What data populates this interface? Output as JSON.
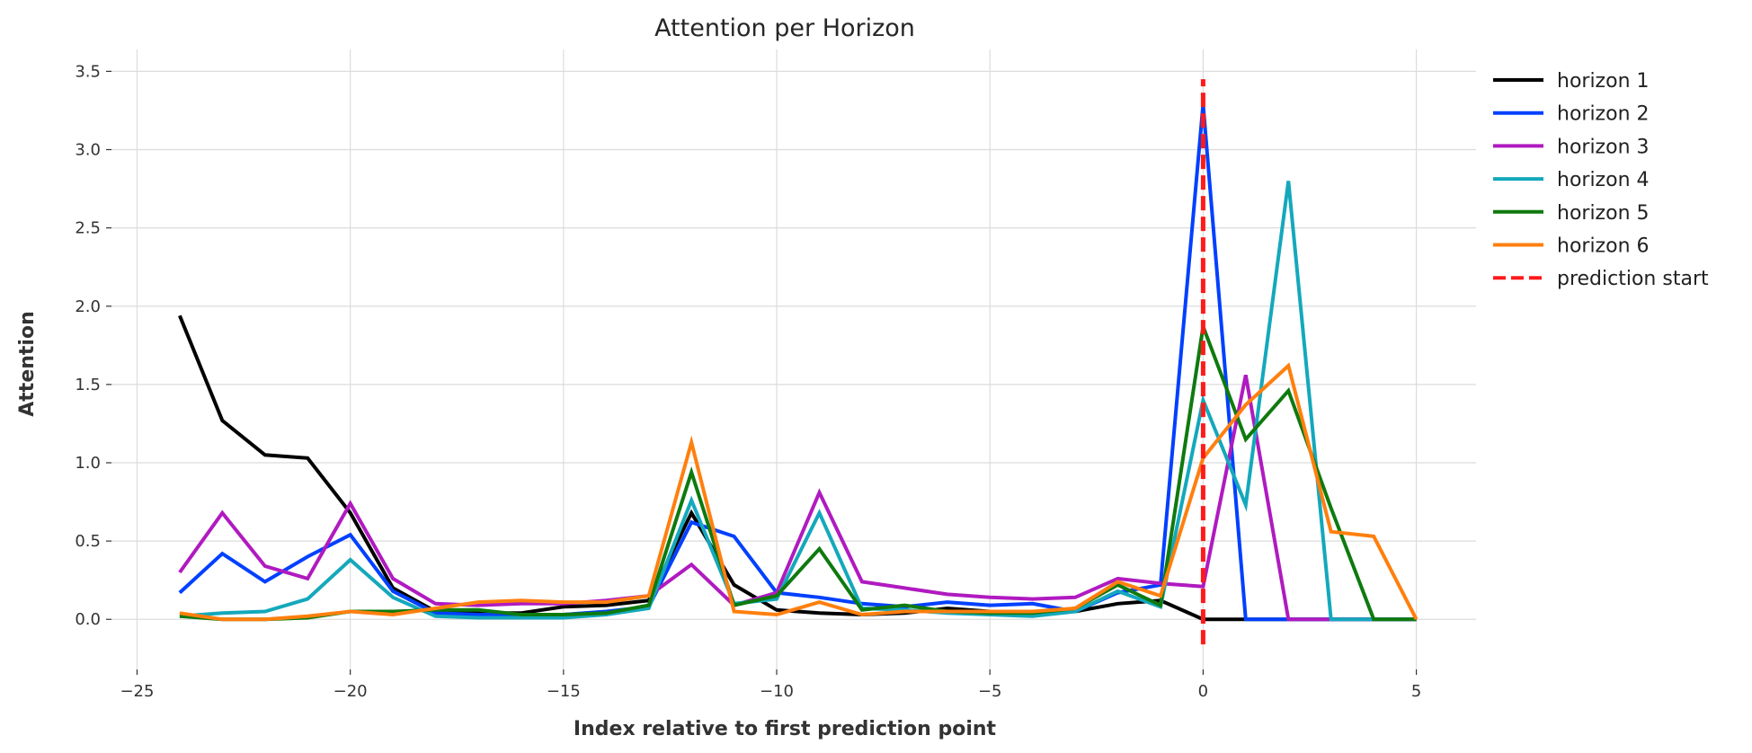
{
  "chart_data": {
    "type": "line",
    "title": "Attention per Horizon",
    "xlabel": "Index relative to first prediction point",
    "ylabel": "Attention",
    "xlim": [
      -25.6,
      6.4
    ],
    "ylim": [
      -0.32,
      3.64
    ],
    "xticks": [
      -25,
      -20,
      -15,
      -10,
      -5,
      0,
      5
    ],
    "xtick_labels": [
      "−25",
      "−20",
      "−15",
      "−10",
      "−5",
      "0",
      "5"
    ],
    "yticks": [
      0.0,
      0.5,
      1.0,
      1.5,
      2.0,
      2.5,
      3.0,
      3.5
    ],
    "ytick_labels": [
      "0.0",
      "0.5",
      "1.0",
      "1.5",
      "2.0",
      "2.5",
      "3.0",
      "3.5"
    ],
    "grid": true,
    "legend_position": "outside-top-right",
    "x": [
      -24,
      -23,
      -22,
      -21,
      -20,
      -19,
      -18,
      -17,
      -16,
      -15,
      -14,
      -13,
      -12,
      -11,
      -10,
      -9,
      -8,
      -7,
      -6,
      -5,
      -4,
      -3,
      -2,
      -1,
      0,
      1,
      2,
      3,
      4,
      5
    ],
    "series": [
      {
        "name": "horizon 1",
        "color": "#000000",
        "values": [
          1.94,
          1.27,
          1.05,
          1.03,
          0.68,
          0.2,
          0.05,
          0.04,
          0.04,
          0.08,
          0.09,
          0.12,
          0.68,
          0.22,
          0.06,
          0.04,
          0.03,
          0.04,
          0.07,
          0.05,
          0.05,
          0.05,
          0.1,
          0.12,
          0.0,
          0.0,
          0.0,
          0.0,
          0.0,
          0.0
        ]
      },
      {
        "name": "horizon 2",
        "color": "#0040ff",
        "values": [
          0.17,
          0.42,
          0.24,
          0.4,
          0.54,
          0.18,
          0.04,
          0.03,
          0.03,
          0.03,
          0.05,
          0.08,
          0.62,
          0.53,
          0.17,
          0.14,
          0.1,
          0.08,
          0.11,
          0.09,
          0.1,
          0.05,
          0.17,
          0.22,
          3.29,
          0.0,
          0.0,
          0.0,
          0.0,
          0.0
        ]
      },
      {
        "name": "horizon 3",
        "color": "#b01ac0",
        "values": [
          0.3,
          0.68,
          0.34,
          0.26,
          0.74,
          0.26,
          0.1,
          0.09,
          0.1,
          0.1,
          0.12,
          0.15,
          0.35,
          0.09,
          0.17,
          0.81,
          0.24,
          0.2,
          0.16,
          0.14,
          0.13,
          0.14,
          0.26,
          0.23,
          0.21,
          1.56,
          0.0,
          0.0,
          0.0,
          0.0
        ]
      },
      {
        "name": "horizon 4",
        "color": "#14a8bc",
        "values": [
          0.02,
          0.04,
          0.05,
          0.13,
          0.38,
          0.14,
          0.02,
          0.01,
          0.01,
          0.01,
          0.03,
          0.07,
          0.76,
          0.1,
          0.13,
          0.68,
          0.07,
          0.06,
          0.04,
          0.03,
          0.02,
          0.05,
          0.18,
          0.08,
          1.4,
          0.73,
          2.8,
          0.0,
          0.0,
          0.0
        ]
      },
      {
        "name": "horizon 5",
        "color": "#0e7a0e",
        "values": [
          0.02,
          0.0,
          0.0,
          0.01,
          0.05,
          0.05,
          0.06,
          0.06,
          0.03,
          0.03,
          0.04,
          0.09,
          0.94,
          0.09,
          0.15,
          0.45,
          0.06,
          0.09,
          0.05,
          0.04,
          0.04,
          0.07,
          0.22,
          0.09,
          1.87,
          1.15,
          1.46,
          0.71,
          0.0,
          0.0
        ]
      },
      {
        "name": "horizon 6",
        "color": "#ff7f0e",
        "values": [
          0.04,
          0.0,
          0.0,
          0.02,
          0.05,
          0.03,
          0.07,
          0.11,
          0.12,
          0.11,
          0.11,
          0.15,
          1.13,
          0.05,
          0.03,
          0.11,
          0.03,
          0.05,
          0.05,
          0.05,
          0.05,
          0.07,
          0.24,
          0.15,
          1.03,
          1.37,
          1.62,
          0.56,
          0.53,
          0.0
        ]
      }
    ],
    "reference_line": {
      "name": "prediction start",
      "x": 0,
      "y_range": [
        -0.16,
        3.45
      ],
      "color": "#ff1a1a",
      "style": "dashed"
    }
  }
}
